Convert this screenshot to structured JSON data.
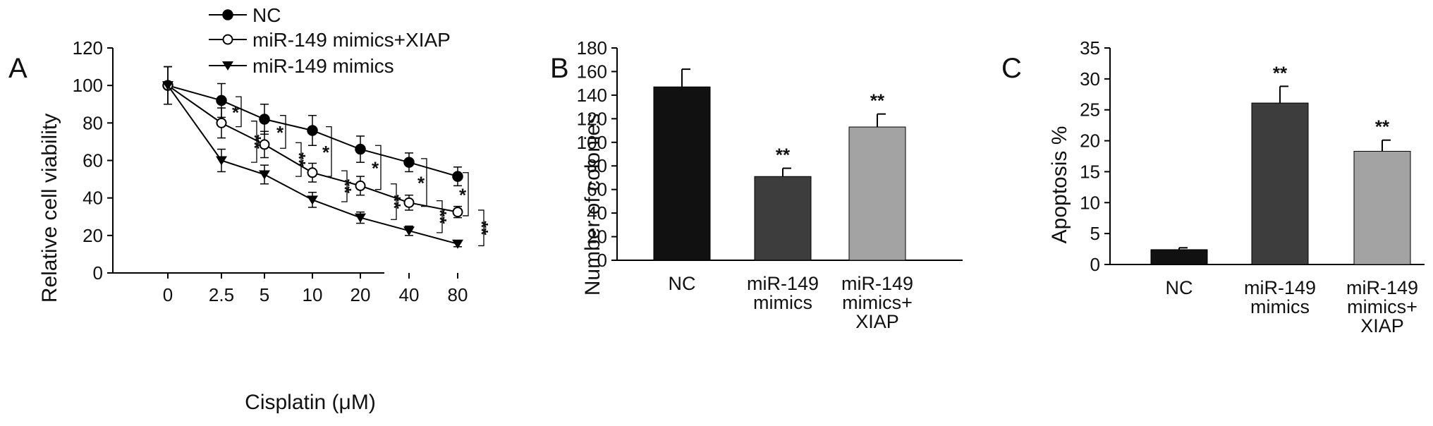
{
  "chart_data": [
    {
      "panel": "A",
      "type": "line",
      "xlabel": "Cisplatin (μM)",
      "ylabel": "Relative cell viability",
      "x": [
        "0",
        "2.5",
        "5",
        "10",
        "20",
        "40",
        "80"
      ],
      "ylim": [
        0,
        120
      ],
      "yticks": [
        0,
        20,
        40,
        60,
        80,
        100,
        120
      ],
      "legend_position": "top-left",
      "series": [
        {
          "name": "NC",
          "marker": "filled-circle",
          "values": [
            100,
            92,
            82,
            76,
            66,
            59,
            51.5
          ],
          "errors": [
            10,
            9,
            8,
            8,
            7,
            5,
            5
          ]
        },
        {
          "name": "miR-149 mimics+XIAP",
          "marker": "open-circle",
          "values": [
            100,
            80,
            68.5,
            53.5,
            46.5,
            37.5,
            32.5
          ],
          "errors": [
            10,
            8,
            7,
            5,
            5,
            4,
            3
          ]
        },
        {
          "name": "miR-149 mimics",
          "marker": "filled-triangle-down",
          "values": [
            100,
            60,
            52.5,
            39,
            29.5,
            22.5,
            15.5
          ],
          "errors": [
            10,
            6,
            5,
            4,
            3,
            2.5,
            1.5
          ]
        }
      ],
      "annotations": [
        {
          "text": "*"
        },
        {
          "text": "**"
        },
        {
          "text": "*"
        },
        {
          "text": "**"
        },
        {
          "text": "*"
        },
        {
          "text": "**"
        },
        {
          "text": "*"
        },
        {
          "text": "**"
        },
        {
          "text": "*"
        },
        {
          "text": "**"
        },
        {
          "text": "*"
        },
        {
          "text": "**"
        }
      ]
    },
    {
      "panel": "B",
      "type": "bar",
      "ylabel": "Number of colonies",
      "categories": [
        "NC",
        "miR-149\nmimics",
        "miR-149\nmimics+\nXIAP"
      ],
      "values": [
        147,
        71,
        113
      ],
      "errors": [
        15,
        7,
        11
      ],
      "colors": [
        "#111111",
        "#3d3d3d",
        "#a3a3a3"
      ],
      "significance": [
        "",
        "**",
        "**"
      ],
      "ylim": [
        0,
        180
      ],
      "yticks": [
        0,
        20,
        40,
        60,
        80,
        100,
        120,
        140,
        160,
        180
      ]
    },
    {
      "panel": "C",
      "type": "bar",
      "ylabel": "Apoptosis %",
      "categories": [
        "NC",
        "miR-149\nmimics",
        "miR-149\nmimics+\nXIAP"
      ],
      "values": [
        2.4,
        26.1,
        18.3
      ],
      "errors": [
        0.3,
        2.7,
        1.8
      ],
      "colors": [
        "#111111",
        "#3d3d3d",
        "#a3a3a3"
      ],
      "significance": [
        "",
        "**",
        "**"
      ],
      "ylim": [
        0,
        35
      ],
      "yticks": [
        0,
        5,
        10,
        15,
        20,
        25,
        30,
        35
      ]
    }
  ]
}
